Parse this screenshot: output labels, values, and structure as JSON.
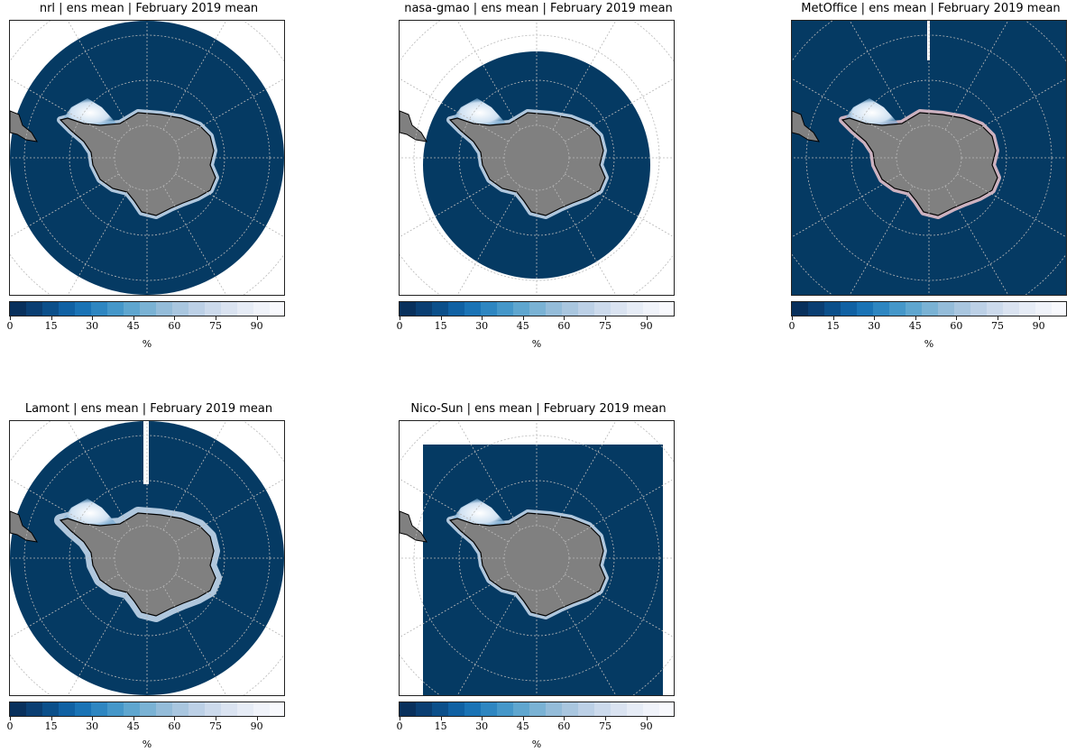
{
  "colorbar": {
    "unit": "%",
    "ticks": [
      "0",
      "15",
      "30",
      "45",
      "60",
      "75",
      "90"
    ],
    "colors": [
      "#08305c",
      "#0a3e72",
      "#0b4f8a",
      "#1061a3",
      "#1a73b5",
      "#2e86c1",
      "#4597c9",
      "#5fa6cf",
      "#7ab2d4",
      "#94bcd9",
      "#a9c6df",
      "#bcd0e6",
      "#ccdaec",
      "#dae3f1",
      "#e6ecf6",
      "#f0f3fa",
      "#f8f9fd"
    ]
  },
  "colors": {
    "ocean": "#053a63",
    "land": "#808080",
    "ice_edge": "#cfe1f2",
    "ice_core": "#ffffff",
    "metoffice_edge": "#f0c8d0"
  },
  "panels": [
    {
      "id": "nrl",
      "title": "nrl | ens mean | February 2019 mean",
      "coverage": "disk-full"
    },
    {
      "id": "nasa-gmao",
      "title": "nasa-gmao | ens mean | February 2019 mean",
      "coverage": "disk-small"
    },
    {
      "id": "metoffice",
      "title": "MetOffice | ens mean | February 2019 mean",
      "coverage": "square-full"
    },
    {
      "id": "lamont",
      "title": "Lamont | ens mean | February 2019 mean",
      "coverage": "disk-full-gap"
    },
    {
      "id": "nico-sun",
      "title": "Nico-Sun | ens mean | February 2019 mean",
      "coverage": "square-small"
    }
  ]
}
